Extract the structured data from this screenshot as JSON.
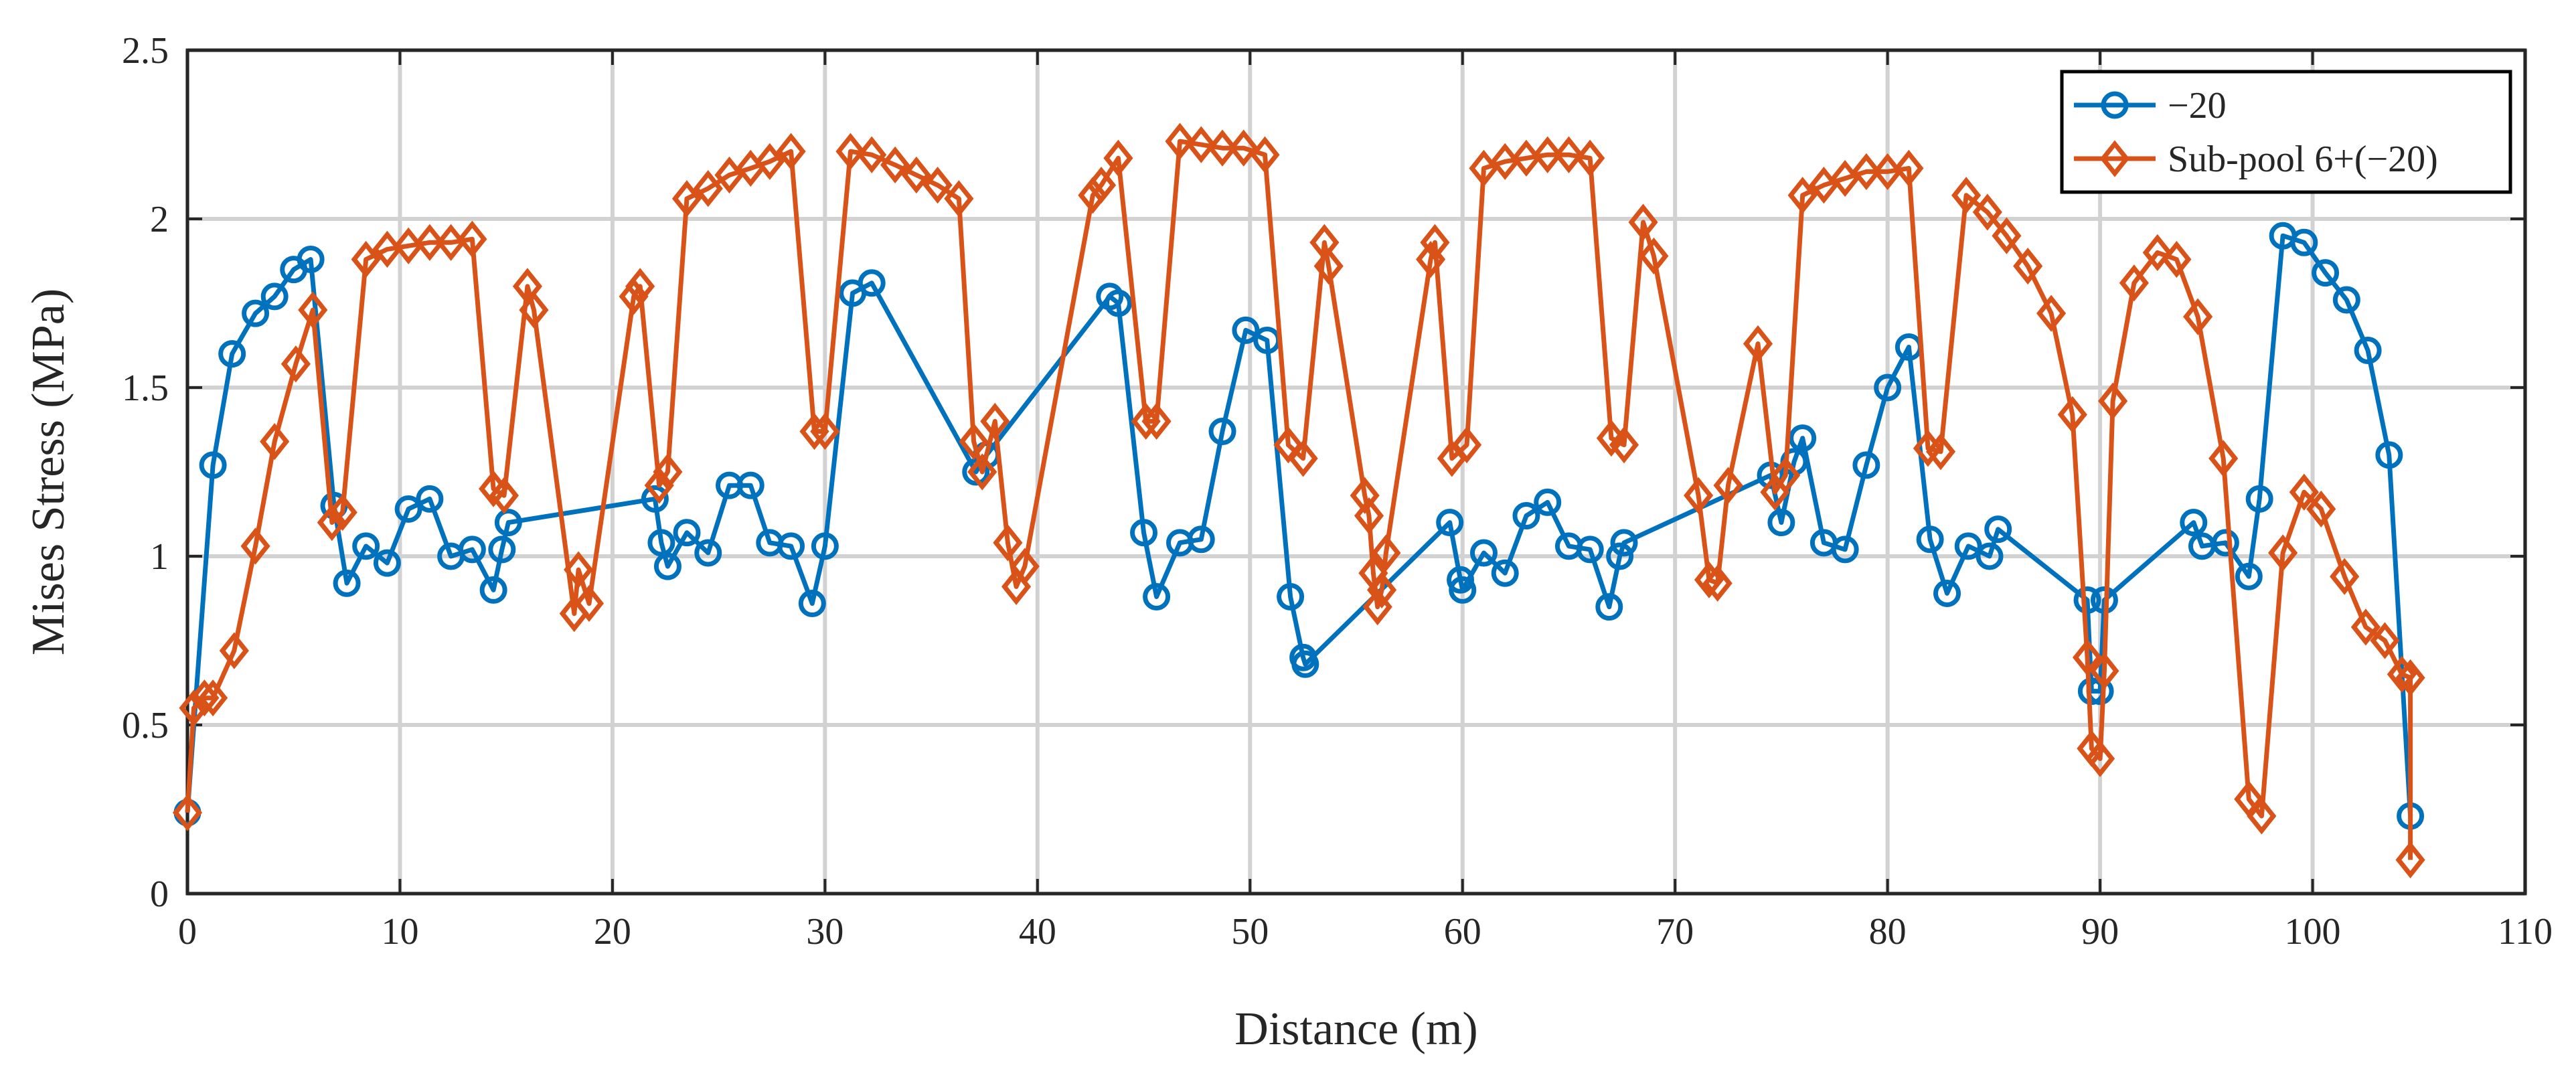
{
  "chart_data": {
    "type": "line",
    "title": "",
    "xlabel": "Distance (m)",
    "ylabel": "Mises Stress (MPa)",
    "xlim": [
      0,
      110
    ],
    "ylim": [
      0,
      2.5
    ],
    "xticks": [
      0,
      10,
      20,
      30,
      40,
      50,
      60,
      70,
      80,
      90,
      100,
      110
    ],
    "yticks": [
      0,
      0.5,
      1,
      1.5,
      2,
      2.5
    ],
    "xtick_labels": [
      "0",
      "10",
      "20",
      "30",
      "40",
      "50",
      "60",
      "70",
      "80",
      "90",
      "100",
      "110"
    ],
    "ytick_labels": [
      "0",
      "0.5",
      "1",
      "1.5",
      "2",
      "2.5"
    ],
    "grid": true,
    "legend_position": "top-right",
    "series": [
      {
        "name": "−20",
        "color": "#0072BD",
        "marker": "circle",
        "points": [
          [
            0.0,
            0.24
          ],
          [
            1.2,
            1.27
          ],
          [
            2.1,
            1.6
          ],
          [
            3.2,
            1.72
          ],
          [
            4.1,
            1.77
          ],
          [
            5.0,
            1.85
          ],
          [
            5.8,
            1.88
          ],
          [
            6.9,
            1.15
          ],
          [
            7.5,
            0.92
          ],
          [
            8.4,
            1.03
          ],
          [
            9.4,
            0.98
          ],
          [
            10.4,
            1.14
          ],
          [
            11.4,
            1.17
          ],
          [
            12.4,
            1.0
          ],
          [
            13.4,
            1.02
          ],
          [
            14.4,
            0.9
          ],
          [
            14.8,
            1.02
          ],
          [
            15.1,
            1.1
          ],
          [
            22.0,
            1.17
          ],
          [
            22.3,
            1.04
          ],
          [
            22.6,
            0.97
          ],
          [
            23.5,
            1.07
          ],
          [
            24.5,
            1.01
          ],
          [
            25.5,
            1.21
          ],
          [
            26.5,
            1.21
          ],
          [
            27.4,
            1.04
          ],
          [
            28.4,
            1.03
          ],
          [
            29.4,
            0.86
          ],
          [
            30.0,
            1.03
          ],
          [
            31.3,
            1.78
          ],
          [
            32.2,
            1.81
          ],
          [
            37.1,
            1.25
          ],
          [
            37.6,
            1.3
          ],
          [
            43.4,
            1.77
          ],
          [
            43.8,
            1.75
          ],
          [
            45.0,
            1.07
          ],
          [
            45.6,
            0.88
          ],
          [
            46.7,
            1.04
          ],
          [
            47.7,
            1.05
          ],
          [
            48.7,
            1.37
          ],
          [
            49.8,
            1.67
          ],
          [
            50.8,
            1.64
          ],
          [
            51.9,
            0.88
          ],
          [
            52.5,
            0.7
          ],
          [
            52.6,
            0.68
          ],
          [
            59.4,
            1.1
          ],
          [
            59.9,
            0.93
          ],
          [
            60.0,
            0.9
          ],
          [
            61.0,
            1.01
          ],
          [
            62.0,
            0.95
          ],
          [
            63.0,
            1.12
          ],
          [
            64.0,
            1.16
          ],
          [
            65.0,
            1.03
          ],
          [
            66.0,
            1.02
          ],
          [
            66.9,
            0.85
          ],
          [
            67.4,
            1.0
          ],
          [
            67.6,
            1.04
          ],
          [
            74.5,
            1.24
          ],
          [
            75.0,
            1.1
          ],
          [
            75.6,
            1.28
          ],
          [
            76.0,
            1.35
          ],
          [
            77.0,
            1.04
          ],
          [
            78.0,
            1.02
          ],
          [
            79.0,
            1.27
          ],
          [
            80.0,
            1.5
          ],
          [
            81.0,
            1.62
          ],
          [
            82.0,
            1.05
          ],
          [
            82.8,
            0.89
          ],
          [
            83.8,
            1.03
          ],
          [
            84.8,
            1.0
          ],
          [
            85.2,
            1.08
          ],
          [
            89.4,
            0.87
          ],
          [
            89.6,
            0.6
          ],
          [
            90.0,
            0.6
          ],
          [
            90.2,
            0.87
          ],
          [
            94.4,
            1.1
          ],
          [
            94.8,
            1.03
          ],
          [
            95.9,
            1.04
          ],
          [
            97.0,
            0.94
          ],
          [
            97.5,
            1.17
          ],
          [
            98.6,
            1.95
          ],
          [
            99.6,
            1.93
          ],
          [
            100.6,
            1.84
          ],
          [
            101.6,
            1.76
          ],
          [
            102.6,
            1.61
          ],
          [
            103.6,
            1.3
          ],
          [
            104.6,
            0.23
          ]
        ]
      },
      {
        "name": "Sub-pool 6+(−20)",
        "color": "#D95319",
        "marker": "diamond",
        "points": [
          [
            0.0,
            0.24
          ],
          [
            0.3,
            0.55
          ],
          [
            0.8,
            0.58
          ],
          [
            1.2,
            0.58
          ],
          [
            2.2,
            0.72
          ],
          [
            3.2,
            1.03
          ],
          [
            4.1,
            1.34
          ],
          [
            5.1,
            1.57
          ],
          [
            5.9,
            1.73
          ],
          [
            6.8,
            1.1
          ],
          [
            7.3,
            1.13
          ],
          [
            8.4,
            1.88
          ],
          [
            9.4,
            1.91
          ],
          [
            10.4,
            1.92
          ],
          [
            11.4,
            1.93
          ],
          [
            12.4,
            1.93
          ],
          [
            13.4,
            1.94
          ],
          [
            14.4,
            1.2
          ],
          [
            14.9,
            1.18
          ],
          [
            16.0,
            1.8
          ],
          [
            16.3,
            1.73
          ],
          [
            18.2,
            0.83
          ],
          [
            18.4,
            0.96
          ],
          [
            18.9,
            0.86
          ],
          [
            21.0,
            1.77
          ],
          [
            21.3,
            1.8
          ],
          [
            22.2,
            1.21
          ],
          [
            22.6,
            1.25
          ],
          [
            23.5,
            2.06
          ],
          [
            24.5,
            2.09
          ],
          [
            25.5,
            2.13
          ],
          [
            26.5,
            2.15
          ],
          [
            27.4,
            2.17
          ],
          [
            28.4,
            2.2
          ],
          [
            29.5,
            1.37
          ],
          [
            30.0,
            1.37
          ],
          [
            31.2,
            2.2
          ],
          [
            32.2,
            2.19
          ],
          [
            33.3,
            2.16
          ],
          [
            34.3,
            2.13
          ],
          [
            35.3,
            2.1
          ],
          [
            36.3,
            2.06
          ],
          [
            37.0,
            1.34
          ],
          [
            37.4,
            1.25
          ],
          [
            38.0,
            1.4
          ],
          [
            38.6,
            1.04
          ],
          [
            39.0,
            0.91
          ],
          [
            39.4,
            0.97
          ],
          [
            42.6,
            2.07
          ],
          [
            43.0,
            2.1
          ],
          [
            43.8,
            2.18
          ],
          [
            45.1,
            1.4
          ],
          [
            45.6,
            1.4
          ],
          [
            46.7,
            2.23
          ],
          [
            47.7,
            2.22
          ],
          [
            48.7,
            2.21
          ],
          [
            49.7,
            2.21
          ],
          [
            50.7,
            2.19
          ],
          [
            51.8,
            1.33
          ],
          [
            52.5,
            1.29
          ],
          [
            53.5,
            1.93
          ],
          [
            53.7,
            1.86
          ],
          [
            55.4,
            1.18
          ],
          [
            55.6,
            1.12
          ],
          [
            55.8,
            0.95
          ],
          [
            56.0,
            0.85
          ],
          [
            56.2,
            0.9
          ],
          [
            56.4,
            1.01
          ],
          [
            58.5,
            1.88
          ],
          [
            58.7,
            1.93
          ],
          [
            59.5,
            1.29
          ],
          [
            60.2,
            1.33
          ],
          [
            61.0,
            2.15
          ],
          [
            62.0,
            2.17
          ],
          [
            63.0,
            2.18
          ],
          [
            64.0,
            2.19
          ],
          [
            65.0,
            2.19
          ],
          [
            66.0,
            2.18
          ],
          [
            67.0,
            1.35
          ],
          [
            67.6,
            1.33
          ],
          [
            68.5,
            1.99
          ],
          [
            69.0,
            1.89
          ],
          [
            71.1,
            1.18
          ],
          [
            71.6,
            0.93
          ],
          [
            72.0,
            0.92
          ],
          [
            72.5,
            1.21
          ],
          [
            73.9,
            1.63
          ],
          [
            74.7,
            1.19
          ],
          [
            75.2,
            1.24
          ],
          [
            76.0,
            2.07
          ],
          [
            77.0,
            2.1
          ],
          [
            78.0,
            2.12
          ],
          [
            79.0,
            2.14
          ],
          [
            80.0,
            2.14
          ],
          [
            81.0,
            2.15
          ],
          [
            81.9,
            1.32
          ],
          [
            82.5,
            1.31
          ],
          [
            83.7,
            2.07
          ],
          [
            84.7,
            2.02
          ],
          [
            85.6,
            1.95
          ],
          [
            86.6,
            1.86
          ],
          [
            87.7,
            1.72
          ],
          [
            88.7,
            1.42
          ],
          [
            89.4,
            0.7
          ],
          [
            89.6,
            0.43
          ],
          [
            90.0,
            0.4
          ],
          [
            90.2,
            0.66
          ],
          [
            90.6,
            1.46
          ],
          [
            91.6,
            1.81
          ],
          [
            92.7,
            1.9
          ],
          [
            93.6,
            1.88
          ],
          [
            94.6,
            1.71
          ],
          [
            95.8,
            1.29
          ],
          [
            97.0,
            0.28
          ],
          [
            97.6,
            0.23
          ],
          [
            98.6,
            1.01
          ],
          [
            99.6,
            1.19
          ],
          [
            100.4,
            1.14
          ],
          [
            101.5,
            0.94
          ],
          [
            102.5,
            0.79
          ],
          [
            103.4,
            0.75
          ],
          [
            104.2,
            0.65
          ],
          [
            104.6,
            0.64
          ],
          [
            104.6,
            0.1
          ]
        ]
      }
    ]
  }
}
